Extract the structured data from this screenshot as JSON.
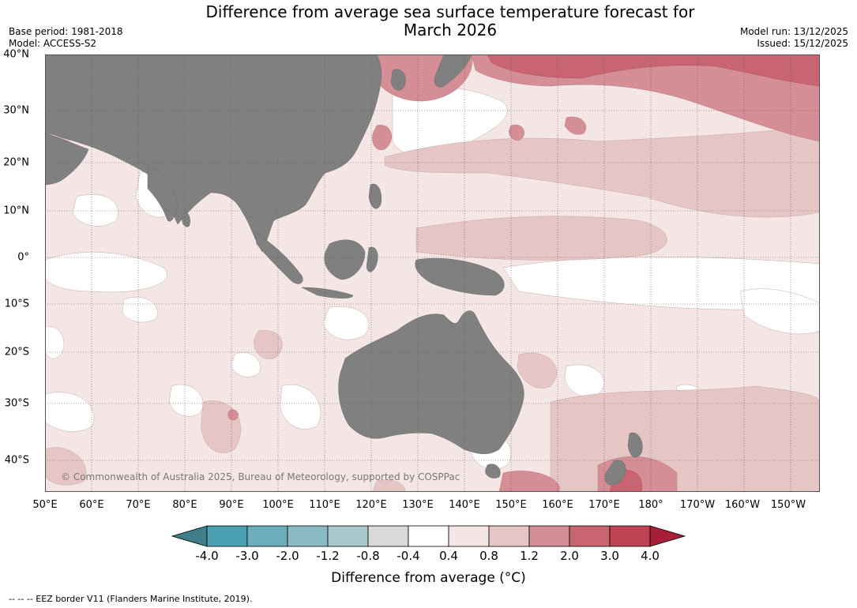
{
  "title_line1": "Difference from average sea surface temperature forecast for",
  "title_line2": "March 2026",
  "meta": {
    "base_period": "Base period: 1981-2018",
    "model": "Model: ACCESS-S2",
    "model_run": "Model run: 13/12/2025",
    "issued": "Issued: 15/12/2025"
  },
  "lat_labels": [
    "40°N",
    "30°N",
    "20°N",
    "10°N",
    "0°",
    "10°S",
    "20°S",
    "30°S",
    "40°S"
  ],
  "lon_labels": [
    "50°E",
    "60°E",
    "70°E",
    "80°E",
    "90°E",
    "100°E",
    "110°E",
    "120°E",
    "130°E",
    "140°E",
    "150°E",
    "160°E",
    "170°E",
    "180°",
    "170°W",
    "160°W",
    "150°W"
  ],
  "copyright": "© Commonwealth of Australia 2025, Bureau of Meteorology, supported by COSPPac",
  "colorbar": {
    "labels": [
      "-4.0",
      "-3.0",
      "-2.0",
      "-1.2",
      "-0.8",
      "-0.4",
      "0.4",
      "0.8",
      "1.2",
      "2.0",
      "3.0",
      "4.0"
    ],
    "colors": [
      "#3e7f8b",
      "#4aa0b1",
      "#6cadbb",
      "#8bb9c4",
      "#a9c8cc",
      "#d9d9d9",
      "#ffffff",
      "#f3e6e5",
      "#e6c6c4",
      "#d58e96",
      "#c86571",
      "#bf4453",
      "#a81e36"
    ],
    "title": "Difference from average (°C)"
  },
  "colors": {
    "land": "#808080",
    "gridline": "#555555"
  },
  "footer": "--  --  -- EEZ border V11 (Flanders Marine Institute, 2019)."
}
